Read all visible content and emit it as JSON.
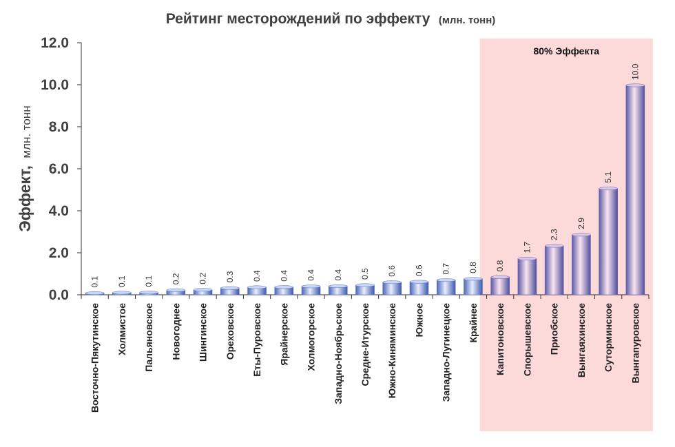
{
  "chart_data": {
    "type": "bar",
    "title": "Рейтинг месторождений по эффекту",
    "title_unit": "(млн. тонн)",
    "ylabel": "Эффект,",
    "ylabel_unit": "млн. тонн",
    "xlabel": "",
    "ylim": [
      0,
      12
    ],
    "yticks": [
      "0.0",
      "2.0",
      "4.0",
      "6.0",
      "8.0",
      "10.0",
      "12.0"
    ],
    "grid": false,
    "categories": [
      "Восточно-Пякутинское",
      "Холмистое",
      "Пальяновское",
      "Новогоднее",
      "Шингинское",
      "Ореховское",
      "Еты-Пуровское",
      "Ярайнерское",
      "Холмогорское",
      "Западно-Ноябрьское",
      "Средне-Итурское",
      "Южно-Киняминское",
      "Южное",
      "Западно-Лугинецкое",
      "Крайнее",
      "Капитоновское",
      "Спорышевское",
      "Приобское",
      "Вынгаяхинское",
      "Суторминское",
      "Вынгапуровское"
    ],
    "values": [
      0.08,
      0.1,
      0.11,
      0.22,
      0.24,
      0.32,
      0.36,
      0.37,
      0.4,
      0.41,
      0.46,
      0.6,
      0.62,
      0.7,
      0.76,
      0.84,
      1.72,
      2.33,
      2.86,
      5.06,
      9.97
    ],
    "data_labels": [
      "0.1",
      "0.1",
      "0.1",
      "0.2",
      "0.2",
      "0.3",
      "0.4",
      "0.4",
      "0.4",
      "0.4",
      "0.5",
      "0.6",
      "0.6",
      "0.7",
      "0.8",
      "0.8",
      "1.7",
      "2.3",
      "2.9",
      "5.1",
      "10.0"
    ],
    "highlight": {
      "label": "80% Эффекта",
      "from_index": 15,
      "to_index": 20,
      "color": "#fddada"
    },
    "colors": {
      "bar_normal": "#6f8fd8",
      "bar_highlight": "#b8a0d6",
      "axis": "#333333"
    }
  }
}
